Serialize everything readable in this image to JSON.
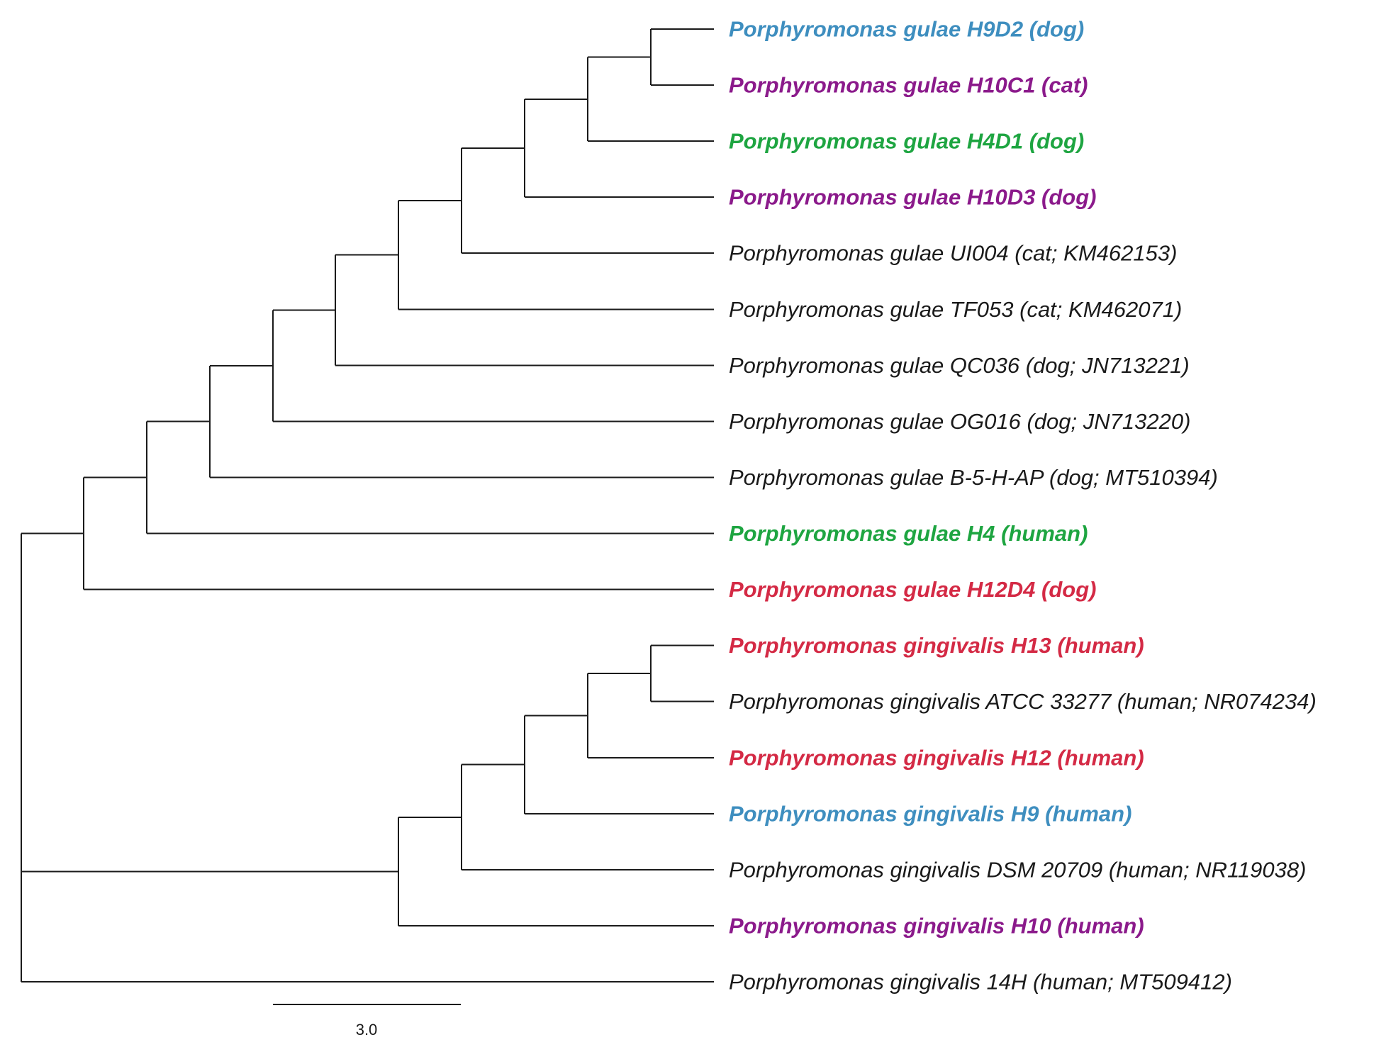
{
  "figure": {
    "type": "phylogenetic-tree",
    "scale_bar": {
      "label": "3.0",
      "length": 3.0
    }
  },
  "colors": {
    "blue": "#3e8ebf",
    "purple": "#8b1a8b",
    "green": "#1ea541",
    "red": "#d42a45",
    "black": "#1a1a1a"
  },
  "leaves": [
    {
      "id": "pg-h9d2",
      "label": "Porphyromonas gulae H9D2 (dog)",
      "color": "blue",
      "bold": true
    },
    {
      "id": "pg-h10c1",
      "label": "Porphyromonas gulae H10C1 (cat)",
      "color": "purple",
      "bold": true
    },
    {
      "id": "pg-h4d1",
      "label": "Porphyromonas gulae H4D1 (dog)",
      "color": "green",
      "bold": true
    },
    {
      "id": "pg-h10d3",
      "label": "Porphyromonas gulae H10D3 (dog)",
      "color": "purple",
      "bold": true
    },
    {
      "id": "pg-ui004",
      "label": "Porphyromonas gulae UI004 (cat; KM462153)",
      "color": "black",
      "bold": false
    },
    {
      "id": "pg-tf053",
      "label": "Porphyromonas gulae TF053 (cat; KM462071)",
      "color": "black",
      "bold": false
    },
    {
      "id": "pg-qc036",
      "label": "Porphyromonas gulae QC036 (dog; JN713221)",
      "color": "black",
      "bold": false
    },
    {
      "id": "pg-og016",
      "label": "Porphyromonas gulae OG016 (dog; JN713220)",
      "color": "black",
      "bold": false
    },
    {
      "id": "pg-b5hap",
      "label": "Porphyromonas gulae B-5-H-AP (dog; MT510394)",
      "color": "black",
      "bold": false
    },
    {
      "id": "pg-h4",
      "label": "Porphyromonas gulae H4 (human)",
      "color": "green",
      "bold": true
    },
    {
      "id": "pg-h12d4",
      "label": "Porphyromonas gulae H12D4 (dog)",
      "color": "red",
      "bold": true
    },
    {
      "id": "pgi-h13",
      "label": "Porphyromonas gingivalis H13 (human)",
      "color": "red",
      "bold": true
    },
    {
      "id": "pgi-atcc",
      "label": "Porphyromonas gingivalis ATCC 33277 (human; NR074234)",
      "color": "black",
      "bold": false
    },
    {
      "id": "pgi-h12",
      "label": "Porphyromonas gingivalis H12 (human)",
      "color": "red",
      "bold": true
    },
    {
      "id": "pgi-h9",
      "label": "Porphyromonas gingivalis H9 (human)",
      "color": "blue",
      "bold": true
    },
    {
      "id": "pgi-dsm",
      "label": "Porphyromonas gingivalis DSM 20709 (human; NR119038)",
      "color": "black",
      "bold": false
    },
    {
      "id": "pgi-h10",
      "label": "Porphyromonas gingivalis H10 (human)",
      "color": "purple",
      "bold": true
    },
    {
      "id": "pgi-14h",
      "label": "Porphyromonas gingivalis 14H (human; MT509412)",
      "color": "black",
      "bold": false
    }
  ]
}
